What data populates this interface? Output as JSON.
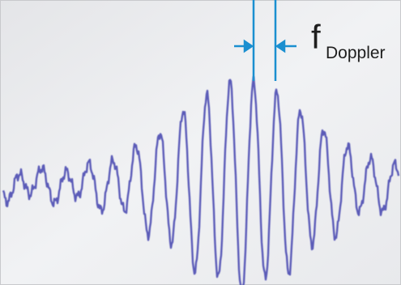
{
  "annotation": {
    "symbol": "f",
    "subscript": "Doppler"
  }
}
